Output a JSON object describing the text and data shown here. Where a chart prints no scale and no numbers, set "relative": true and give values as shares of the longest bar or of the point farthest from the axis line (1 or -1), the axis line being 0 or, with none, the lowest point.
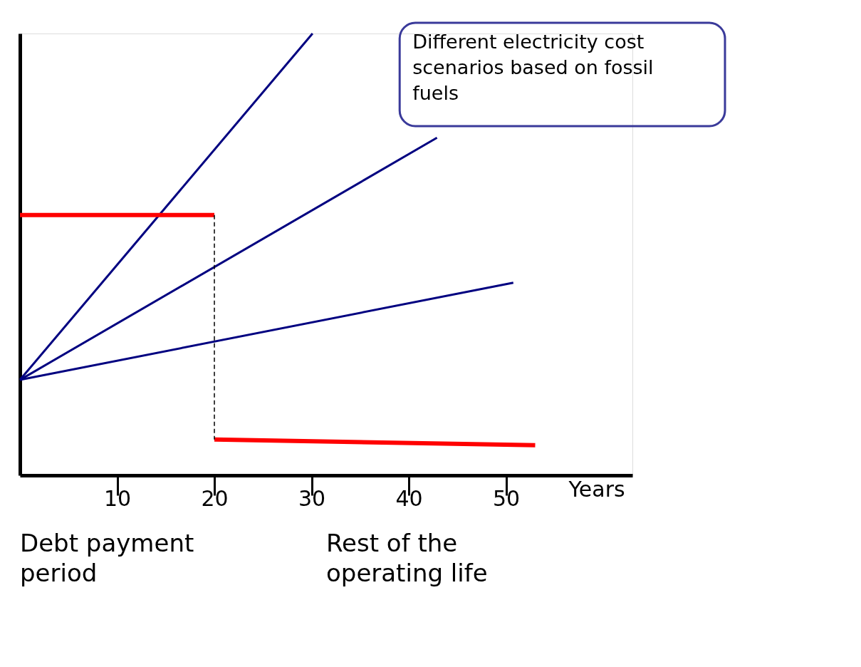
{
  "chart_data": {
    "type": "line",
    "relative": true,
    "xlabel": "Years",
    "xlim": [
      0,
      63
    ],
    "xticks": [
      10,
      20,
      30,
      40,
      50
    ],
    "tick_labels": "x",
    "grid": false,
    "marker": "none",
    "series": [
      {
        "color": "#000080",
        "x": [
          0,
          30.1
        ],
        "values": [
          0.216,
          1
        ]
      },
      {
        "color": "#000080",
        "x": [
          0,
          42.9
        ],
        "values": [
          0.216,
          0.764
        ]
      },
      {
        "color": "#000080",
        "x": [
          0,
          50.75
        ],
        "values": [
          0.216,
          0.436
        ]
      },
      {
        "color": "#ff0000",
        "x": [
          0,
          20
        ],
        "values": [
          0.589,
          0.589
        ]
      },
      {
        "color": "#ff0000",
        "x": [
          20,
          53
        ],
        "values": [
          0.081,
          0.068
        ]
      },
      {
        "color": "#000000",
        "line_style": "dashed",
        "x": [
          20,
          20
        ],
        "values": [
          0.589,
          0.081
        ]
      }
    ],
    "annotations": [
      "Different electricity cost scenarios based on fossil fuels",
      "Debt payment period",
      "Rest of the operating life"
    ]
  }
}
